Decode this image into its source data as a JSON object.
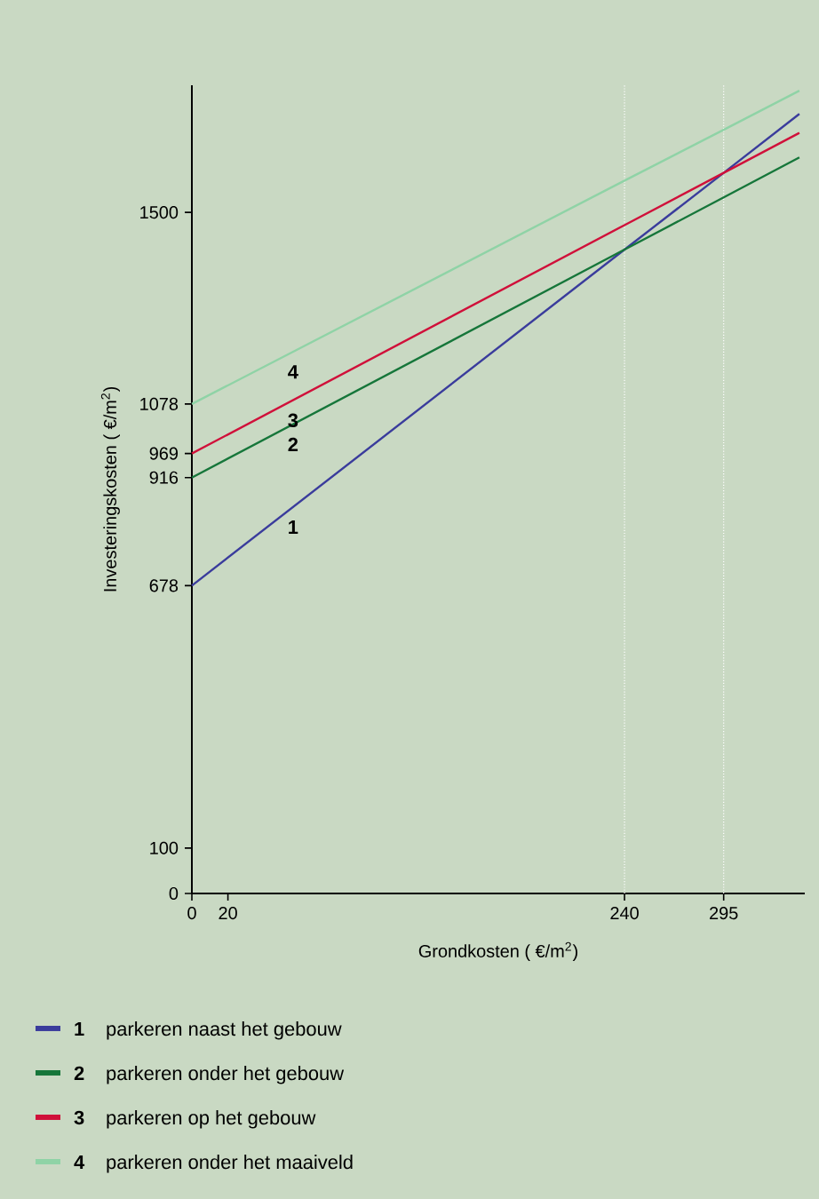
{
  "chart_data": {
    "type": "line",
    "xlabel": "Grondkosten ( €/m$^{2}$)",
    "ylabel": "Investeringskosten ( €/m$^{2}$)",
    "x": [
      0,
      240,
      295,
      337
    ],
    "series": [
      {
        "name": "parkeren naast het gebouw",
        "color": "#3a3c9c",
        "values": [
          678,
          1418,
          1587,
          1717
        ]
      },
      {
        "name": "parkeren onder het gebouw",
        "color": "#16763a",
        "values": [
          916,
          1418,
          1533,
          1621
        ]
      },
      {
        "name": "parkeren op het gebouw",
        "color": "#d0103a",
        "values": [
          969,
          1472,
          1587,
          1675
        ]
      },
      {
        "name": "parkeren onder het maaiveld",
        "color": "#8fd3a6",
        "values": [
          1078,
          1570,
          1682,
          1768
        ]
      }
    ],
    "annotations": [
      "1",
      "2",
      "3",
      "4"
    ],
    "ref_lines": [
      {
        "axis": "x",
        "value": 240,
        "color": "#ffffff",
        "line_style": "dotted"
      },
      {
        "axis": "x",
        "value": 295,
        "color": "#ffffff",
        "line_style": "dotted"
      }
    ],
    "xlim": [
      0,
      340
    ],
    "ylim": [
      0,
      1780
    ],
    "xticks": [
      0,
      20,
      240,
      295
    ],
    "yticks": [
      0,
      100,
      678,
      916,
      969,
      1078,
      1500
    ],
    "legend": "bottom",
    "marker": "none",
    "line_style": "solid"
  }
}
